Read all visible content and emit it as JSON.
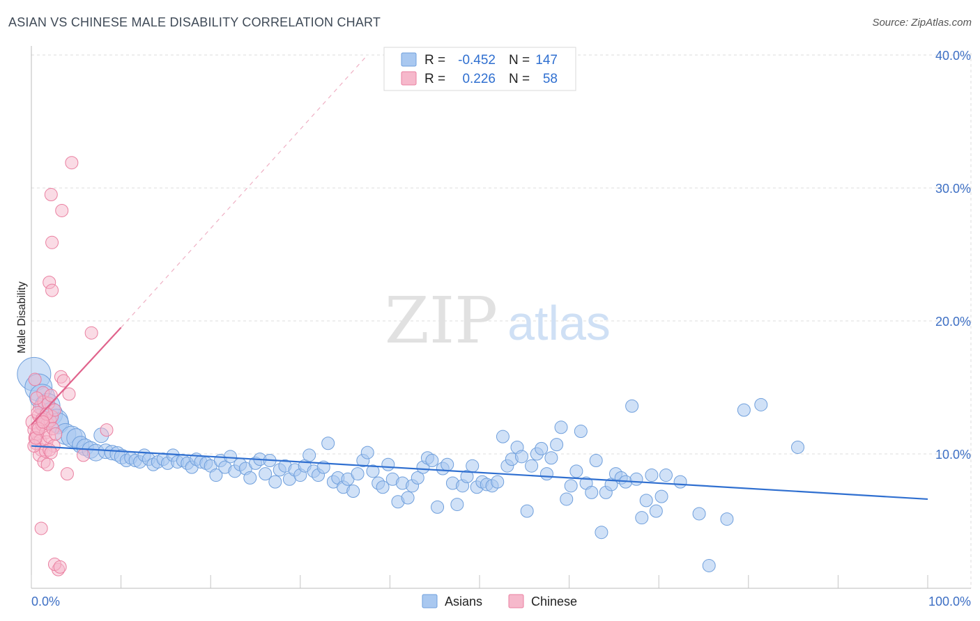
{
  "title": "ASIAN VS CHINESE MALE DISABILITY CORRELATION CHART",
  "source": "Source: ZipAtlas.com",
  "watermark": {
    "part1": "ZIP",
    "part2": "atlas"
  },
  "legend_box": {
    "rows": [
      {
        "r_label": "R =",
        "r_value": "-0.452",
        "n_label": "N =",
        "n_value": "147",
        "color": "#a9c8f0"
      },
      {
        "r_label": "R =",
        "r_value": "0.226",
        "n_label": "N =",
        "n_value": "58",
        "color": "#f6b8cb"
      }
    ]
  },
  "colors": {
    "asian_fill": "#a9c8f0",
    "asian_stroke": "#6f9fdc",
    "asian_line": "#2f6fd0",
    "chinese_fill": "#f6b8cb",
    "chinese_stroke": "#ea7fa0",
    "chinese_line": "#e0638c",
    "axis_text": "#3d6fc4",
    "grid": "#dddddd"
  },
  "chart_data": {
    "type": "scatter",
    "title": "ASIAN VS CHINESE MALE DISABILITY CORRELATION CHART",
    "xlabel": "",
    "ylabel": "Male Disability",
    "xlim": [
      0,
      100
    ],
    "ylim": [
      0,
      40
    ],
    "x_tick_labels": [
      "0.0%",
      "100.0%"
    ],
    "y_ticks": [
      10,
      20,
      30,
      40
    ],
    "y_tick_labels": [
      "10.0%",
      "20.0%",
      "30.0%",
      "40.0%"
    ],
    "grid": true,
    "legend_position": "bottom",
    "series": [
      {
        "name": "Asians",
        "r": -0.452,
        "n": 147,
        "trend": {
          "x": [
            0,
            100
          ],
          "y": [
            10.6,
            6.6
          ],
          "style": "solid"
        },
        "points": [
          [
            0.3,
            16.0,
            1.6
          ],
          [
            0.8,
            15.0,
            1.3
          ],
          [
            1.2,
            14.3,
            1.2
          ],
          [
            1.8,
            13.6,
            1.2
          ],
          [
            2.2,
            13.0,
            1.1
          ],
          [
            2.8,
            12.5,
            1.1
          ],
          [
            3.0,
            12.3,
            1.0
          ],
          [
            3.8,
            11.5,
            1.0
          ],
          [
            4.5,
            11.3,
            1.0
          ],
          [
            5.0,
            11.2,
            0.9
          ],
          [
            5.5,
            10.7,
            0.8
          ],
          [
            6.0,
            10.5,
            0.8
          ],
          [
            6.6,
            10.3,
            0.8
          ],
          [
            7.2,
            10.1,
            0.8
          ],
          [
            7.8,
            11.4,
            0.7
          ],
          [
            8.3,
            10.2,
            0.7
          ],
          [
            9.0,
            10.1,
            0.7
          ],
          [
            9.6,
            10.0,
            0.7
          ],
          [
            10.1,
            9.8,
            0.7
          ],
          [
            10.6,
            9.5,
            0.6
          ],
          [
            11.1,
            9.7,
            0.6
          ],
          [
            11.6,
            9.5,
            0.6
          ],
          [
            12.1,
            9.4,
            0.6
          ],
          [
            12.6,
            9.9,
            0.6
          ],
          [
            13.1,
            9.6,
            0.6
          ],
          [
            13.6,
            9.2,
            0.6
          ],
          [
            14.1,
            9.4,
            0.6
          ],
          [
            14.7,
            9.6,
            0.6
          ],
          [
            15.2,
            9.3,
            0.6
          ],
          [
            15.8,
            9.9,
            0.6
          ],
          [
            16.3,
            9.4,
            0.6
          ],
          [
            16.9,
            9.5,
            0.6
          ],
          [
            17.4,
            9.3,
            0.6
          ],
          [
            17.9,
            9.0,
            0.6
          ],
          [
            18.4,
            9.6,
            0.6
          ],
          [
            18.9,
            9.4,
            0.6
          ],
          [
            19.5,
            9.3,
            0.6
          ],
          [
            20.0,
            9.1,
            0.6
          ],
          [
            20.6,
            8.4,
            0.6
          ],
          [
            21.1,
            9.5,
            0.6
          ],
          [
            21.6,
            9.0,
            0.6
          ],
          [
            22.2,
            9.8,
            0.6
          ],
          [
            22.7,
            8.7,
            0.6
          ],
          [
            23.3,
            9.2,
            0.6
          ],
          [
            23.9,
            8.9,
            0.6
          ],
          [
            24.4,
            8.2,
            0.6
          ],
          [
            25.0,
            9.3,
            0.6
          ],
          [
            25.5,
            9.6,
            0.6
          ],
          [
            26.1,
            8.5,
            0.6
          ],
          [
            26.6,
            9.5,
            0.6
          ],
          [
            27.2,
            7.9,
            0.6
          ],
          [
            27.7,
            8.8,
            0.6
          ],
          [
            28.3,
            9.1,
            0.6
          ],
          [
            28.8,
            8.1,
            0.6
          ],
          [
            29.4,
            8.8,
            0.6
          ],
          [
            30.0,
            8.4,
            0.6
          ],
          [
            30.5,
            9.1,
            0.6
          ],
          [
            31.0,
            9.9,
            0.6
          ],
          [
            31.5,
            8.7,
            0.6
          ],
          [
            32.0,
            8.4,
            0.6
          ],
          [
            32.6,
            9.0,
            0.6
          ],
          [
            33.1,
            10.8,
            0.6
          ],
          [
            33.7,
            7.9,
            0.6
          ],
          [
            34.2,
            8.2,
            0.6
          ],
          [
            34.8,
            7.5,
            0.6
          ],
          [
            35.3,
            8.1,
            0.6
          ],
          [
            35.9,
            7.2,
            0.6
          ],
          [
            36.4,
            8.5,
            0.6
          ],
          [
            37.0,
            9.5,
            0.6
          ],
          [
            37.5,
            10.1,
            0.6
          ],
          [
            38.1,
            8.7,
            0.6
          ],
          [
            38.7,
            7.8,
            0.6
          ],
          [
            39.2,
            7.5,
            0.6
          ],
          [
            39.8,
            9.2,
            0.6
          ],
          [
            40.3,
            8.1,
            0.6
          ],
          [
            40.9,
            6.4,
            0.6
          ],
          [
            41.4,
            7.8,
            0.6
          ],
          [
            42.0,
            6.7,
            0.6
          ],
          [
            42.5,
            7.6,
            0.6
          ],
          [
            43.1,
            8.2,
            0.6
          ],
          [
            43.7,
            9.0,
            0.6
          ],
          [
            44.2,
            9.7,
            0.6
          ],
          [
            44.7,
            9.5,
            0.6
          ],
          [
            45.3,
            6.0,
            0.6
          ],
          [
            45.9,
            8.9,
            0.6
          ],
          [
            46.4,
            9.2,
            0.6
          ],
          [
            47.0,
            7.8,
            0.6
          ],
          [
            47.5,
            6.2,
            0.6
          ],
          [
            48.1,
            7.6,
            0.6
          ],
          [
            48.6,
            8.3,
            0.6
          ],
          [
            49.2,
            9.1,
            0.6
          ],
          [
            49.7,
            7.5,
            0.6
          ],
          [
            50.3,
            7.9,
            0.6
          ],
          [
            50.8,
            7.7,
            0.6
          ],
          [
            51.4,
            7.6,
            0.6
          ],
          [
            52.0,
            7.9,
            0.6
          ],
          [
            52.6,
            11.3,
            0.6
          ],
          [
            53.1,
            9.1,
            0.6
          ],
          [
            53.6,
            9.6,
            0.6
          ],
          [
            54.2,
            10.5,
            0.6
          ],
          [
            54.7,
            9.8,
            0.6
          ],
          [
            55.3,
            5.7,
            0.6
          ],
          [
            55.8,
            9.1,
            0.6
          ],
          [
            56.4,
            10.0,
            0.6
          ],
          [
            56.9,
            10.4,
            0.6
          ],
          [
            57.5,
            8.5,
            0.6
          ],
          [
            58.0,
            9.7,
            0.6
          ],
          [
            58.6,
            10.7,
            0.6
          ],
          [
            59.1,
            12.0,
            0.6
          ],
          [
            59.7,
            6.6,
            0.6
          ],
          [
            60.2,
            7.6,
            0.6
          ],
          [
            60.8,
            8.7,
            0.6
          ],
          [
            61.3,
            11.7,
            0.6
          ],
          [
            61.9,
            7.8,
            0.6
          ],
          [
            62.5,
            7.1,
            0.6
          ],
          [
            63.0,
            9.5,
            0.6
          ],
          [
            63.6,
            4.1,
            0.6
          ],
          [
            64.1,
            7.1,
            0.6
          ],
          [
            64.7,
            7.7,
            0.6
          ],
          [
            65.2,
            8.5,
            0.6
          ],
          [
            65.8,
            8.2,
            0.6
          ],
          [
            66.3,
            7.9,
            0.6
          ],
          [
            67.0,
            13.6,
            0.6
          ],
          [
            67.5,
            8.1,
            0.6
          ],
          [
            68.1,
            5.2,
            0.6
          ],
          [
            68.6,
            6.5,
            0.6
          ],
          [
            69.2,
            8.4,
            0.6
          ],
          [
            69.7,
            5.7,
            0.6
          ],
          [
            70.3,
            6.8,
            0.6
          ],
          [
            70.8,
            8.4,
            0.6
          ],
          [
            72.4,
            7.9,
            0.6
          ],
          [
            74.5,
            5.5,
            0.6
          ],
          [
            75.6,
            1.6,
            0.6
          ],
          [
            77.6,
            5.1,
            0.6
          ],
          [
            79.5,
            13.3,
            0.6
          ],
          [
            81.4,
            13.7,
            0.6
          ],
          [
            85.5,
            10.5,
            0.6
          ]
        ]
      },
      {
        "name": "Chinese",
        "r": 0.226,
        "n": 58,
        "trend": {
          "x": [
            0,
            10
          ],
          "y": [
            12.2,
            19.5
          ],
          "style": "solid",
          "extended": {
            "x": [
              10,
              37.5
            ],
            "y": [
              19.5,
              40
            ],
            "style": "dashed"
          }
        },
        "points": [
          [
            0.2,
            12.4,
            0.7
          ],
          [
            0.3,
            11.8,
            0.6
          ],
          [
            0.4,
            11.2,
            0.6
          ],
          [
            0.5,
            10.8,
            0.6
          ],
          [
            0.6,
            11.5,
            0.6
          ],
          [
            0.7,
            12.0,
            0.6
          ],
          [
            0.8,
            12.9,
            0.6
          ],
          [
            0.9,
            13.5,
            0.6
          ],
          [
            1.0,
            11.0,
            0.6
          ],
          [
            1.1,
            10.3,
            0.6
          ],
          [
            1.2,
            12.2,
            0.6
          ],
          [
            1.3,
            14.6,
            0.6
          ],
          [
            1.4,
            13.9,
            0.6
          ],
          [
            1.5,
            12.7,
            0.6
          ],
          [
            1.6,
            11.6,
            0.6
          ],
          [
            1.7,
            10.9,
            0.6
          ],
          [
            1.8,
            12.3,
            0.6
          ],
          [
            1.9,
            13.8,
            0.6
          ],
          [
            2.0,
            11.3,
            0.6
          ],
          [
            2.1,
            12.5,
            0.6
          ],
          [
            2.2,
            14.4,
            0.6
          ],
          [
            2.3,
            12.8,
            0.6
          ],
          [
            2.4,
            11.9,
            0.6
          ],
          [
            2.5,
            10.6,
            0.6
          ],
          [
            2.6,
            13.3,
            0.6
          ],
          [
            2.7,
            11.5,
            0.6
          ],
          [
            0.4,
            15.6,
            0.6
          ],
          [
            0.6,
            14.2,
            0.6
          ],
          [
            0.9,
            9.9,
            0.6
          ],
          [
            1.1,
            4.4,
            0.6
          ],
          [
            1.4,
            9.4,
            0.6
          ],
          [
            1.6,
            10.2,
            0.6
          ],
          [
            1.8,
            9.2,
            0.6
          ],
          [
            2.0,
            10.3,
            0.6
          ],
          [
            2.2,
            10.1,
            0.6
          ],
          [
            2.0,
            22.9,
            0.6
          ],
          [
            2.3,
            22.3,
            0.6
          ],
          [
            2.3,
            25.9,
            0.6
          ],
          [
            2.2,
            29.5,
            0.6
          ],
          [
            3.4,
            28.3,
            0.6
          ],
          [
            4.5,
            31.9,
            0.6
          ],
          [
            6.7,
            19.1,
            0.6
          ],
          [
            3.3,
            15.8,
            0.6
          ],
          [
            3.6,
            15.5,
            0.6
          ],
          [
            4.2,
            14.5,
            0.6
          ],
          [
            4.0,
            8.5,
            0.6
          ],
          [
            5.8,
            9.9,
            0.6
          ],
          [
            8.4,
            11.8,
            0.6
          ],
          [
            3.0,
            1.3,
            0.6
          ],
          [
            2.6,
            1.7,
            0.6
          ],
          [
            3.2,
            1.5,
            0.6
          ],
          [
            0.7,
            13.1,
            0.6
          ],
          [
            1.2,
            12.6,
            0.6
          ],
          [
            1.7,
            13.0,
            0.6
          ],
          [
            0.3,
            10.6,
            0.6
          ],
          [
            0.5,
            11.2,
            0.6
          ],
          [
            0.8,
            11.9,
            0.6
          ],
          [
            1.3,
            12.4,
            0.6
          ]
        ]
      }
    ]
  }
}
